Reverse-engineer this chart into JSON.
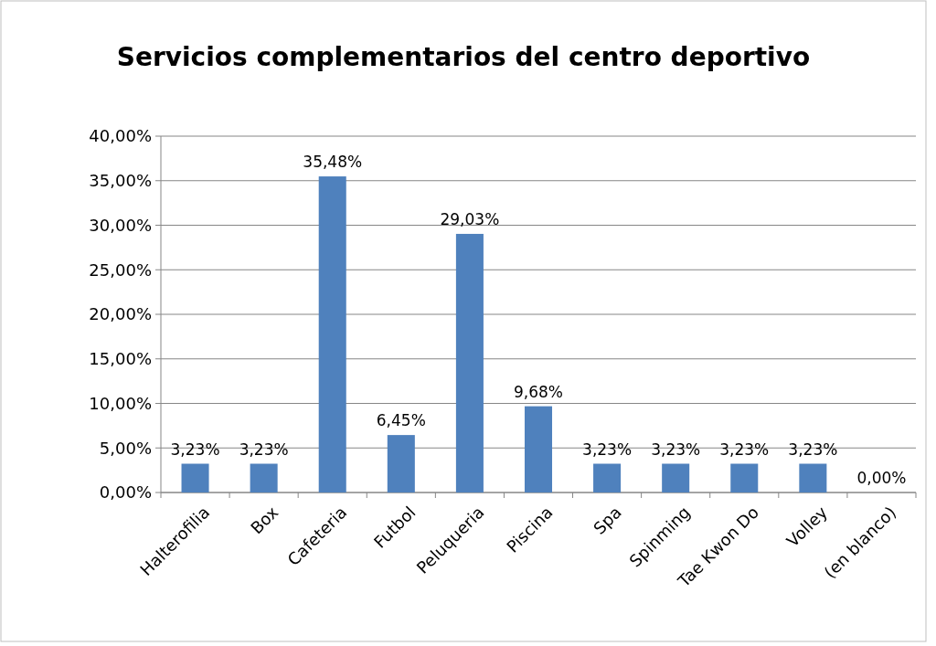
{
  "chart_data": {
    "type": "bar",
    "title": "Servicios complementarios del centro deportivo",
    "categories": [
      "Halterofilia",
      "Box",
      "Cafeteria",
      "Futbol",
      "Peluqueria",
      "Piscina",
      "Spa",
      "Spinming",
      "Tae Kwon Do",
      "Volley",
      "(en blanco)"
    ],
    "values": [
      3.23,
      3.23,
      35.48,
      6.45,
      29.03,
      9.68,
      3.23,
      3.23,
      3.23,
      3.23,
      0
    ],
    "value_labels": [
      "3,23%",
      "3,23%",
      "35,48%",
      "6,45%",
      "29,03%",
      "9,68%",
      "3,23%",
      "3,23%",
      "3,23%",
      "3,23%",
      "0,00%"
    ],
    "color": "#4f81bd",
    "ylim": [
      0,
      40
    ],
    "yticks": [
      {
        "value": 0,
        "label": "0,00%"
      },
      {
        "value": 5,
        "label": "5,00%"
      },
      {
        "value": 10,
        "label": "10,00%"
      },
      {
        "value": 15,
        "label": "15,00%"
      },
      {
        "value": 20,
        "label": "20,00%"
      },
      {
        "value": 25,
        "label": "25,00%"
      },
      {
        "value": 30,
        "label": "30,00%"
      },
      {
        "value": 35,
        "label": "35,00%"
      },
      {
        "value": 40,
        "label": "40,00%"
      }
    ],
    "grid": "y"
  }
}
